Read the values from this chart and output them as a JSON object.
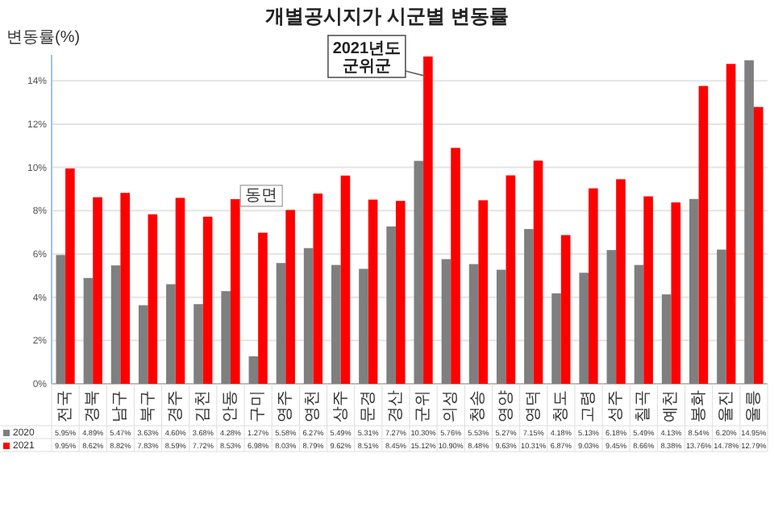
{
  "chart_data": {
    "type": "bar",
    "title": "개별공시지가 시군별 변동률",
    "ylabel": "변동률(%)",
    "categories": [
      "전국",
      "경북",
      "남구",
      "북구",
      "경주",
      "김천",
      "안동",
      "구미",
      "영주",
      "영천",
      "상주",
      "문경",
      "경산",
      "군위",
      "의성",
      "청송",
      "영양",
      "영덕",
      "청도",
      "고령",
      "성주",
      "칠곡",
      "예천",
      "봉화",
      "울진",
      "울릉"
    ],
    "series": [
      {
        "name": "2020",
        "color": "#7f7f7f",
        "values": [
          5.95,
          4.89,
          5.47,
          3.63,
          4.6,
          3.68,
          4.28,
          1.27,
          5.58,
          6.27,
          5.49,
          5.31,
          7.27,
          10.3,
          5.76,
          5.53,
          5.27,
          7.15,
          4.18,
          5.13,
          6.18,
          5.49,
          4.13,
          8.54,
          6.2,
          14.95
        ],
        "value_labels": [
          "5.95%",
          "4.89%",
          "5.47%",
          "3.63%",
          "4.60%",
          "3.68%",
          "4.28%",
          "1.27%",
          "5.58%",
          "6.27%",
          "5.49%",
          "5.31%",
          "7.27%",
          "10.30%",
          "5.76%",
          "5.53%",
          "5.27%",
          "7.15%",
          "4.18%",
          "5.13%",
          "6.18%",
          "5.49%",
          "4.13%",
          "8.54%",
          "6.20%",
          "14.95%"
        ]
      },
      {
        "name": "2021",
        "color": "#ff0000",
        "values": [
          9.95,
          8.62,
          8.82,
          7.83,
          8.59,
          7.72,
          8.53,
          6.98,
          8.03,
          8.79,
          9.62,
          8.51,
          8.45,
          15.12,
          10.9,
          8.48,
          9.63,
          10.31,
          6.87,
          9.03,
          9.45,
          8.66,
          8.38,
          13.76,
          14.78,
          12.79
        ],
        "value_labels": [
          "9.95%",
          "8.62%",
          "8.82%",
          "7.83%",
          "8.59%",
          "7.72%",
          "8.53%",
          "6.98%",
          "8.03%",
          "8.79%",
          "9.62%",
          "8.51%",
          "8.45%",
          "15.12%",
          "10.90%",
          "8.48%",
          "9.63%",
          "10.31%",
          "6.87%",
          "9.03%",
          "9.45%",
          "8.66%",
          "8.38%",
          "13.76%",
          "14.78%",
          "12.79%"
        ]
      }
    ],
    "ylim": [
      0,
      15.2
    ],
    "yticks": [
      {
        "value": 0,
        "label": "0%"
      },
      {
        "value": 2,
        "label": "2%"
      },
      {
        "value": 4,
        "label": "4%"
      },
      {
        "value": 6,
        "label": "6%"
      },
      {
        "value": 8,
        "label": "8%"
      },
      {
        "value": 10,
        "label": "10%"
      },
      {
        "value": 12,
        "label": "12%"
      },
      {
        "value": 14,
        "label": "14%"
      }
    ],
    "grid": "y",
    "legend": "bottom",
    "annotations": [
      {
        "text": "2021년도 군위군",
        "x": "군위",
        "y": 15.12
      },
      "동면"
    ]
  }
}
